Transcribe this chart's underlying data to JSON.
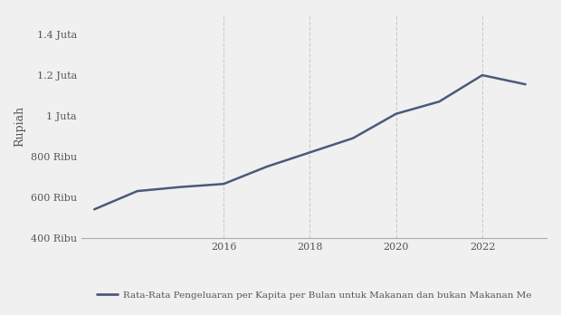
{
  "years": [
    2013,
    2014,
    2015,
    2016,
    2017,
    2018,
    2019,
    2020,
    2021,
    2022,
    2023
  ],
  "values": [
    540000,
    630000,
    650000,
    665000,
    750000,
    820000,
    890000,
    1010000,
    1070000,
    1200000,
    1155000
  ],
  "line_color": "#4a5a7a",
  "line_width": 1.8,
  "background_color": "#f0f0f0",
  "plot_bg_color": "#f0f0f0",
  "grid_color": "#cccccc",
  "ylabel": "Rupiah",
  "ylim": [
    400000,
    1500000
  ],
  "yticks": [
    400000,
    600000,
    800000,
    1000000,
    1200000,
    1400000
  ],
  "ytick_labels": [
    "400 Ribu",
    "600 Ribu",
    "800 Ribu",
    "1 Juta",
    "1.2 Juta",
    "1.4 Juta"
  ],
  "xticks": [
    2016,
    2018,
    2020,
    2022
  ],
  "xlim": [
    2012.7,
    2023.5
  ],
  "legend_label": "Rata-Rata Pengeluaran per Kapita per Bulan untuk Makanan dan bukan Makanan Me",
  "vgrid_years": [
    2016,
    2018,
    2020,
    2022
  ],
  "tick_color": "#555555",
  "spine_color": "#aaaaaa",
  "label_fontsize": 8,
  "ylabel_fontsize": 9
}
